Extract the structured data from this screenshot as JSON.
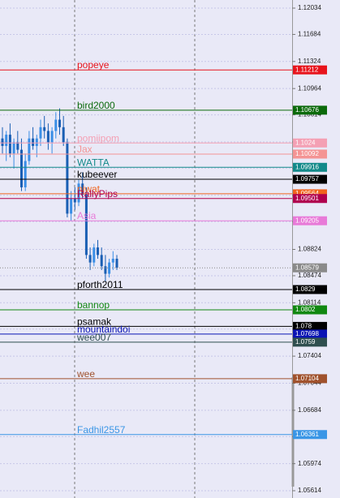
{
  "chart_data": {
    "type": "candlestick",
    "ylim": [
      1.05517,
      1.12142
    ],
    "yticks": [
      1.12034,
      1.11684,
      1.11324,
      1.10964,
      1.10614,
      1.10254,
      1.09904,
      1.09544,
      1.09194,
      1.08824,
      1.08474,
      1.08114,
      1.07764,
      1.07404,
      1.07044,
      1.06684,
      1.06334,
      1.05974,
      1.05614
    ],
    "grid": true,
    "up_color": "#3a8ee6",
    "down_color": "#1a5fb4",
    "open": [
      1.103,
      1.102,
      1.1035,
      1.101,
      1.1025,
      1.1015,
      1.0965,
      1.1,
      1.103,
      1.102,
      1.103,
      1.1045,
      1.104,
      1.1025,
      1.104,
      1.1055,
      1.1045,
      1.1025,
      1.093,
      1.095,
      1.0945,
      1.097,
      1.0955,
      1.0875,
      1.0865,
      1.0885,
      1.0875,
      1.086,
      1.085,
      1.0865,
      1.087
    ],
    "high": [
      1.1045,
      1.104,
      1.105,
      1.103,
      1.104,
      1.103,
      1.101,
      1.104,
      1.1045,
      1.1035,
      1.1055,
      1.106,
      1.105,
      1.1045,
      1.1065,
      1.107,
      1.106,
      1.103,
      1.096,
      1.0965,
      1.0975,
      1.0985,
      1.0965,
      1.0885,
      1.089,
      1.0895,
      1.0885,
      1.0875,
      1.087,
      1.088,
      1.0875
    ],
    "low": [
      1.101,
      1.1,
      1.1005,
      1.099,
      1.101,
      1.096,
      1.096,
      1.0995,
      1.1015,
      1.1005,
      1.102,
      1.103,
      1.1015,
      1.101,
      1.103,
      1.1035,
      1.102,
      1.0925,
      1.092,
      1.0935,
      1.094,
      1.095,
      1.087,
      1.0855,
      1.086,
      1.087,
      1.0855,
      1.084,
      1.0845,
      1.0855,
      1.0855
    ],
    "close": [
      1.102,
      1.1035,
      1.101,
      1.1025,
      1.1015,
      1.0965,
      1.1,
      1.103,
      1.102,
      1.103,
      1.1045,
      1.104,
      1.1025,
      1.104,
      1.1055,
      1.1045,
      1.1025,
      1.093,
      1.095,
      1.0945,
      1.097,
      1.0955,
      1.0875,
      1.0865,
      1.0885,
      1.0875,
      1.086,
      1.085,
      1.0865,
      1.087,
      1.0858
    ],
    "bid": 1.08579,
    "bid_color": "#8a8a8a",
    "levels": [
      {
        "name": "popeye",
        "value": 1.11212,
        "color": "#e8141c"
      },
      {
        "name": "bird2000",
        "value": 1.10676,
        "color": "#0b6a0b"
      },
      {
        "name": "pomiipom",
        "value": 1.1024,
        "color": "#f4a0b4"
      },
      {
        "name": "Jax",
        "value": 1.10092,
        "color": "#f49494"
      },
      {
        "name": "WATTA",
        "value": 1.09916,
        "color": "#138a8a"
      },
      {
        "name": "kubeever",
        "value": 1.09757,
        "color": "#000000"
      },
      {
        "name": "niwat",
        "value": 1.09564,
        "color": "#f0641e"
      },
      {
        "name": "RallyPips",
        "value": 1.09501,
        "color": "#b0004e"
      },
      {
        "name": "Asia",
        "value": 1.09205,
        "color": "#e87ad8"
      },
      {
        "name": "pforth2011",
        "value": 1.0829,
        "color": "#000000"
      },
      {
        "name": "bannop",
        "value": 1.0802,
        "color": "#118811"
      },
      {
        "name": "psamak",
        "value": 1.078,
        "color": "#000000"
      },
      {
        "name": "mountaindoi",
        "value": 1.07698,
        "color": "#0a14b4"
      },
      {
        "name": "wee007",
        "value": 1.0759,
        "color": "#2f4f4f"
      },
      {
        "name": "wee",
        "value": 1.07104,
        "color": "#a0522d"
      },
      {
        "name": "Fadhil2557",
        "value": 1.06361,
        "color": "#3a96e6"
      }
    ]
  }
}
